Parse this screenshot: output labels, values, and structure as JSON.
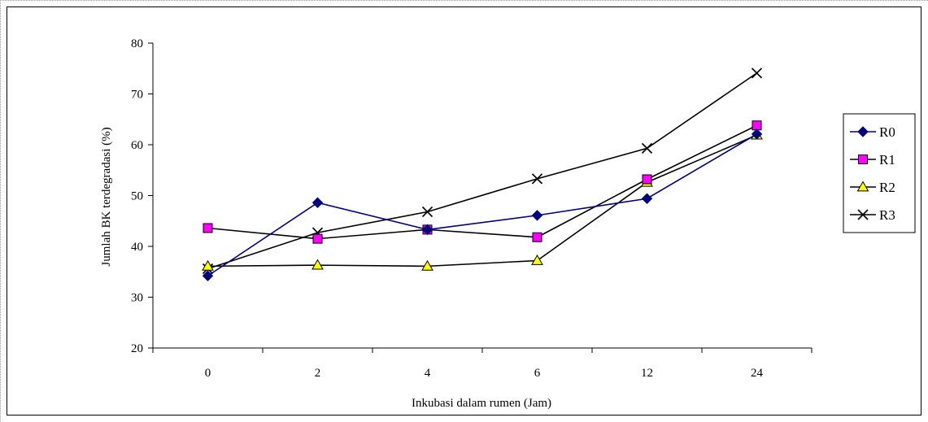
{
  "chart_data": {
    "type": "line",
    "title": "",
    "xlabel": "Inkubasi dalam rumen (Jam)",
    "ylabel": "Jumlah BK terdegradasi (%)",
    "categories": [
      "0",
      "2",
      "4",
      "6",
      "12",
      "24"
    ],
    "ylim": [
      20,
      80
    ],
    "yticks": [
      20,
      30,
      40,
      50,
      60,
      70,
      80
    ],
    "grid": false,
    "legend_position": "right",
    "series": [
      {
        "name": "R0",
        "marker": "diamond",
        "color": "#000080",
        "marker_fill": "#000080",
        "values": [
          34.2,
          48.6,
          43.3,
          46.1,
          49.4,
          62.1
        ]
      },
      {
        "name": "R1",
        "marker": "square",
        "color": "#000000",
        "marker_fill": "#ff00ff",
        "values": [
          43.6,
          41.5,
          43.3,
          41.8,
          53.2,
          63.8
        ]
      },
      {
        "name": "R2",
        "marker": "triangle",
        "color": "#000000",
        "marker_fill": "#ffff00",
        "values": [
          36.1,
          36.3,
          36.1,
          37.2,
          52.6,
          61.9
        ]
      },
      {
        "name": "R3",
        "marker": "x",
        "color": "#000000",
        "marker_fill": "none",
        "values": [
          35.6,
          42.7,
          46.8,
          53.3,
          59.3,
          74.1
        ]
      }
    ]
  }
}
